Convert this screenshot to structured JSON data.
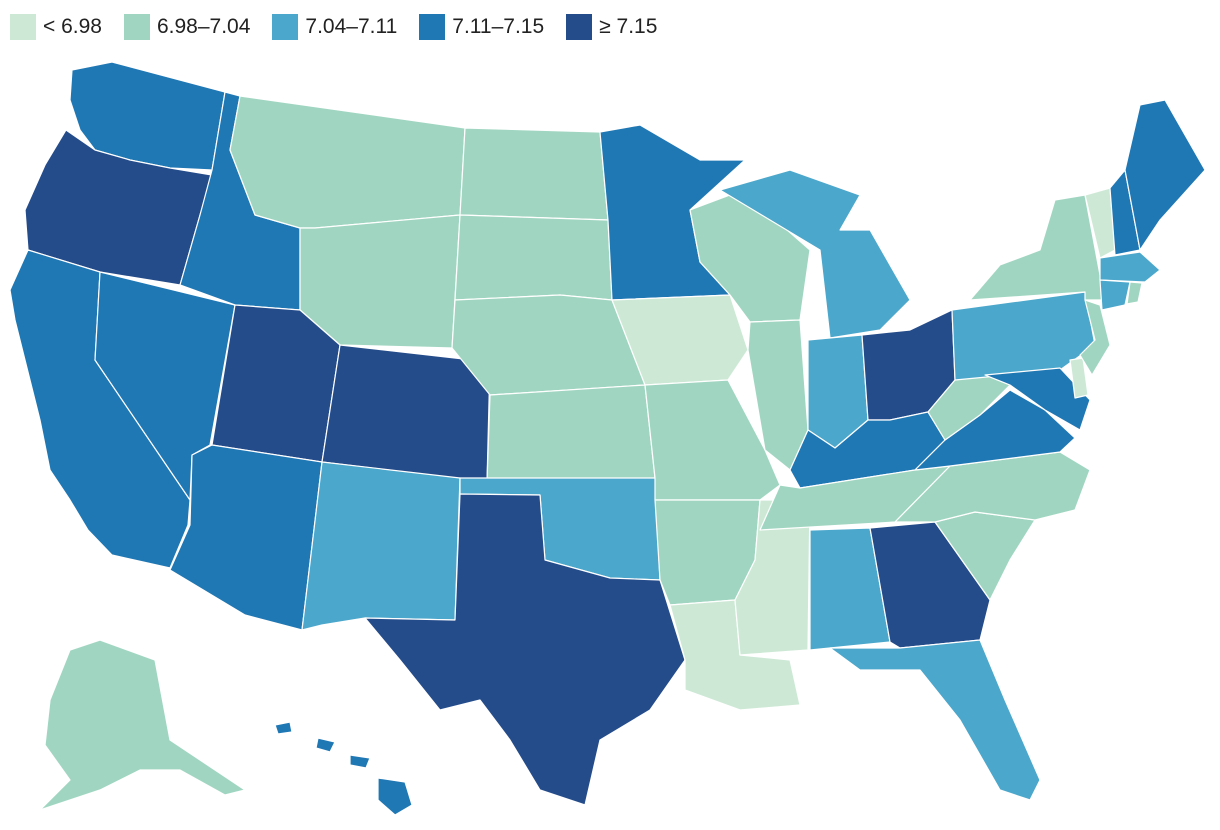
{
  "legend": [
    {
      "label": "< 6.98",
      "color": "#cde9d6"
    },
    {
      "label": "6.98–7.04",
      "color": "#a0d6c1"
    },
    {
      "label": "7.04–7.11",
      "color": "#4ba7cb"
    },
    {
      "label": "7.11–7.15",
      "color": "#1f77b4"
    },
    {
      "label": "≥ 7.15",
      "color": "#244b8a"
    }
  ],
  "states": {
    "WA": 3,
    "OR": 4,
    "CA": 3,
    "NV": 3,
    "ID": 3,
    "MT": 1,
    "WY": 1,
    "UT": 4,
    "AZ": 3,
    "CO": 4,
    "NM": 2,
    "ND": 1,
    "SD": 1,
    "NE": 1,
    "KS": 1,
    "OK": 2,
    "TX": 4,
    "MN": 3,
    "IA": 0,
    "MO": 1,
    "AR": 1,
    "LA": 0,
    "WI": 1,
    "IL": 1,
    "MS": 0,
    "MI": 2,
    "IN": 2,
    "KY": 3,
    "TN": 1,
    "AL": 2,
    "OH": 4,
    "GA": 4,
    "FL": 2,
    "SC": 1,
    "NC": 1,
    "VA": 3,
    "WV": 1,
    "PA": 2,
    "NY": 1,
    "VT": 0,
    "NH": 3,
    "ME": 3,
    "MA": 2,
    "CT": 2,
    "RI": 1,
    "NJ": 1,
    "DE": 0,
    "MD": 3,
    "AK": 1,
    "HI": 3
  }
}
